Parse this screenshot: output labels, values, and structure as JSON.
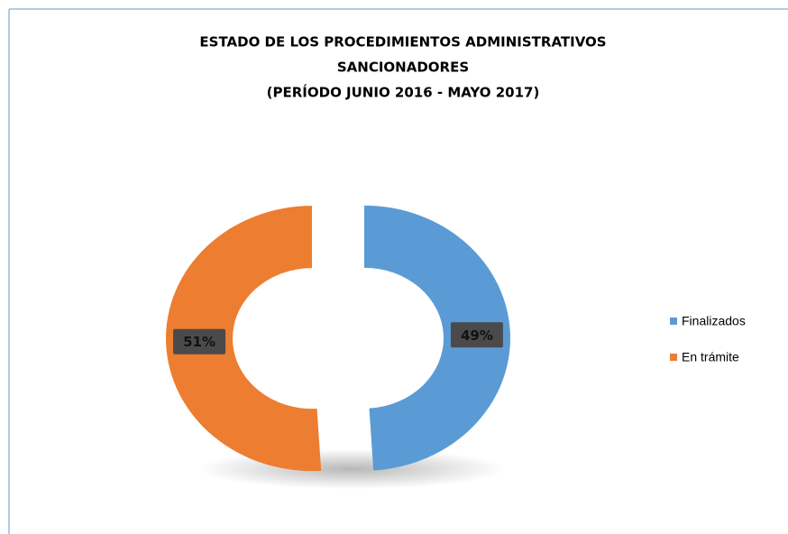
{
  "chart_data": {
    "type": "donut",
    "title": [
      "ESTADO  DE  LOS PROCEDIMIENTOS  ADMINISTRATIVOS",
      "SANCIONADORES",
      "(PERÍODO  JUNIO  2016 - MAYO  2017)"
    ],
    "categories": [
      "Finalizados",
      "En trámite"
    ],
    "values": [
      49,
      51
    ],
    "value_labels": [
      "49%",
      "51%"
    ],
    "colors": [
      "#5b9bd5",
      "#ed7d31"
    ],
    "legend": "right"
  }
}
